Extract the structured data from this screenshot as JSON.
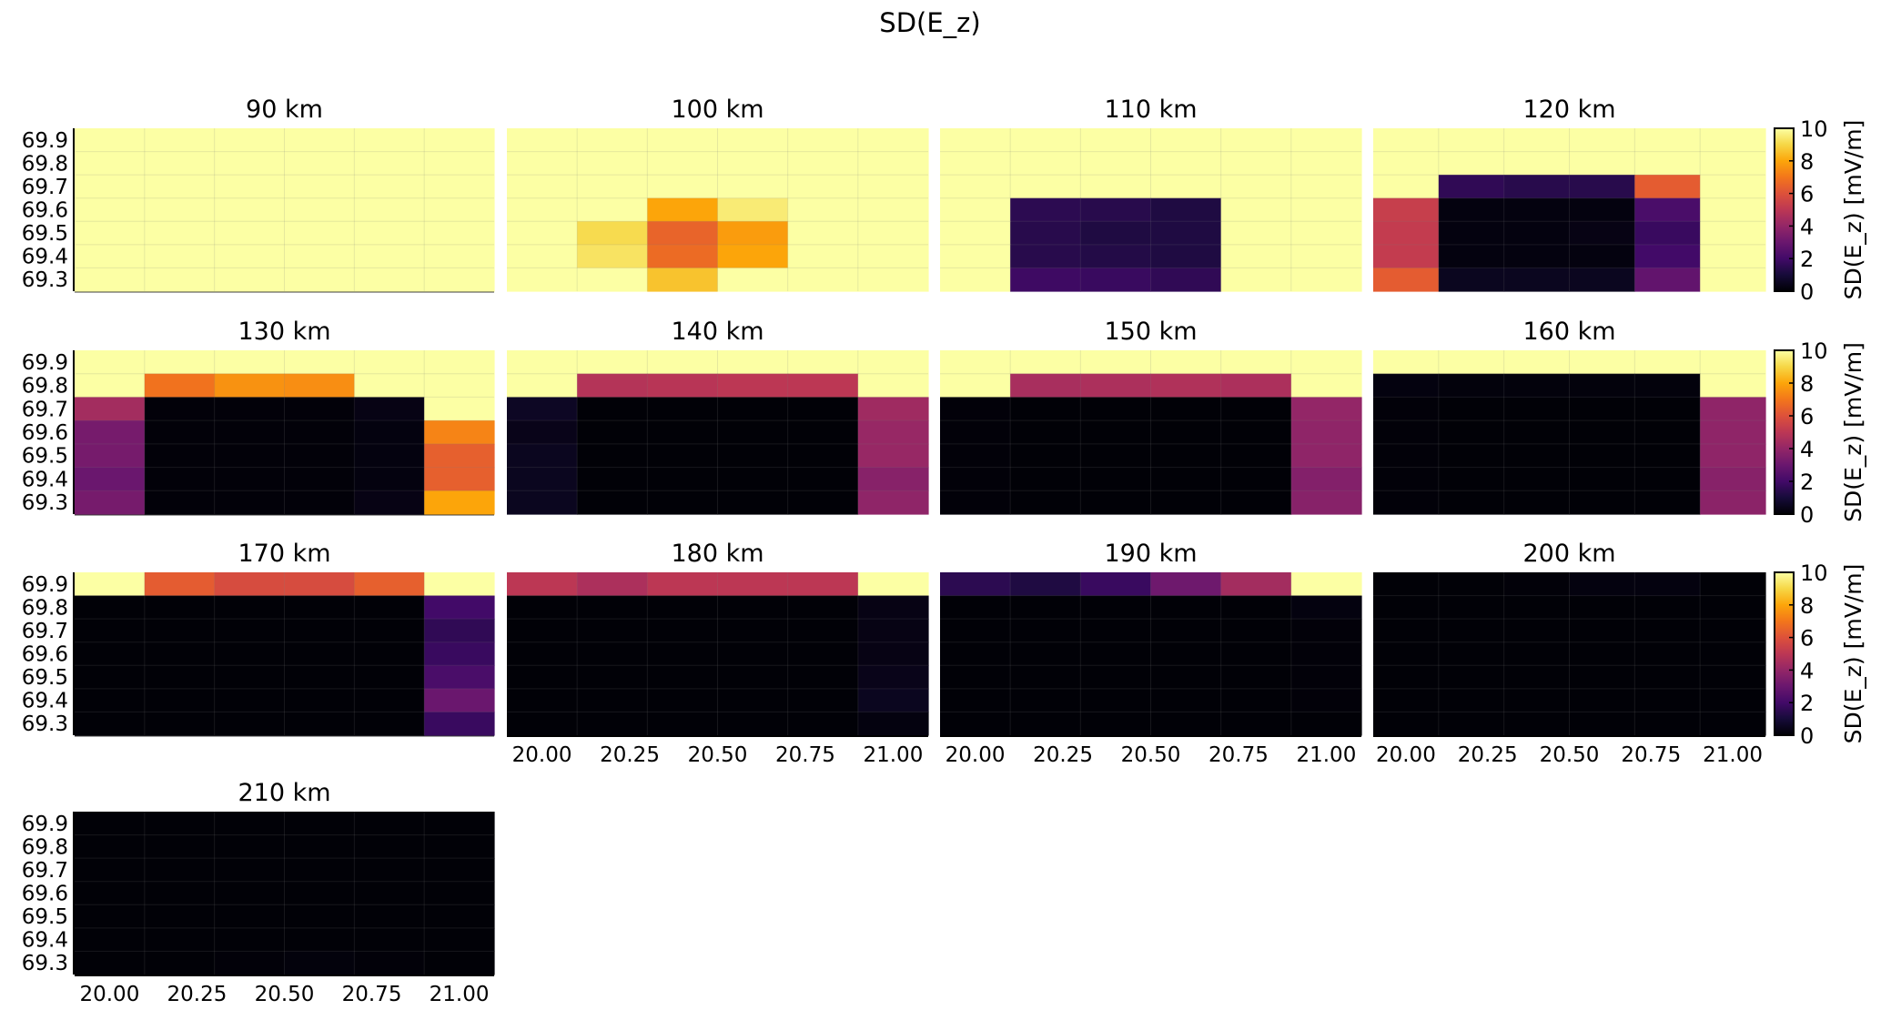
{
  "chart_data": {
    "type": "heatmap",
    "title": "SD(E_z)",
    "xlabel": "",
    "ylabel": "",
    "x": [
      20.0,
      20.2,
      20.4,
      20.6,
      20.8,
      21.0
    ],
    "y": [
      69.9,
      69.8,
      69.7,
      69.6,
      69.5,
      69.4,
      69.3
    ],
    "xticks": [
      "20.00",
      "20.25",
      "20.50",
      "20.75",
      "21.00"
    ],
    "xtick_values": [
      20.0,
      20.25,
      20.5,
      20.75,
      21.0
    ],
    "yticks": [
      "69.9",
      "69.8",
      "69.7",
      "69.6",
      "69.5",
      "69.4",
      "69.3"
    ],
    "xlim": [
      19.9,
      21.1
    ],
    "ylim": [
      69.25,
      69.95
    ],
    "colormap": "inferno",
    "clim": [
      0,
      10
    ],
    "colorbar": {
      "label": "SD(E_z) [mV/m]",
      "ticks": [
        "0",
        "2",
        "4",
        "6",
        "8",
        "10"
      ],
      "tick_values": [
        0,
        2,
        4,
        6,
        8,
        10
      ],
      "placement": "right of each panel row"
    },
    "grid": true,
    "panels": [
      {
        "title": "90 km",
        "values": [
          [
            10,
            10,
            10,
            10,
            10,
            10
          ],
          [
            10,
            10,
            10,
            10,
            10,
            10
          ],
          [
            10,
            10,
            10,
            10,
            10,
            10
          ],
          [
            10,
            10,
            10,
            10,
            10,
            10
          ],
          [
            10,
            10,
            10,
            10,
            10,
            10
          ],
          [
            10,
            10,
            10,
            10,
            10,
            10
          ],
          [
            10,
            10,
            10,
            10,
            10,
            10
          ]
        ]
      },
      {
        "title": "100 km",
        "values": [
          [
            10,
            10,
            10,
            10,
            10,
            10
          ],
          [
            10,
            10,
            10,
            10,
            10,
            10
          ],
          [
            10,
            10,
            10,
            10,
            10,
            10
          ],
          [
            10,
            10,
            8.0,
            9.5,
            10,
            10
          ],
          [
            10,
            9.1,
            6.5,
            7.8,
            10,
            10
          ],
          [
            10,
            9.3,
            6.7,
            8.0,
            10,
            10
          ],
          [
            10,
            10,
            8.6,
            10,
            10,
            10
          ]
        ]
      },
      {
        "title": "110 km",
        "values": [
          [
            10,
            10,
            10,
            10,
            10,
            10
          ],
          [
            10,
            10,
            10,
            10,
            10,
            10
          ],
          [
            10,
            10,
            10,
            10,
            10,
            10
          ],
          [
            10,
            1.5,
            1.4,
            1.2,
            10,
            10
          ],
          [
            10,
            1.4,
            1.2,
            1.2,
            10,
            10
          ],
          [
            10,
            1.4,
            1.3,
            1.2,
            10,
            10
          ],
          [
            10,
            1.9,
            1.8,
            1.6,
            10,
            10
          ]
        ]
      },
      {
        "title": "120 km",
        "values": [
          [
            10,
            10,
            10,
            10,
            10,
            10
          ],
          [
            10,
            10,
            10,
            10,
            10,
            10
          ],
          [
            10,
            1.6,
            1.4,
            1.4,
            6.3,
            10
          ],
          [
            5.3,
            0.2,
            0.2,
            0.2,
            2.2,
            10
          ],
          [
            5.2,
            0.2,
            0.2,
            0.3,
            1.8,
            10
          ],
          [
            5.2,
            0.2,
            0.2,
            0.2,
            2.0,
            10
          ],
          [
            6.3,
            0.5,
            0.5,
            0.5,
            2.8,
            10
          ]
        ]
      },
      {
        "title": "130 km",
        "values": [
          [
            10,
            10,
            10,
            10,
            10,
            10
          ],
          [
            10,
            6.9,
            7.6,
            7.5,
            10,
            10
          ],
          [
            4.4,
            0.1,
            0.1,
            0.1,
            0.3,
            10
          ],
          [
            3.3,
            0.1,
            0.1,
            0.1,
            0.2,
            7.3
          ],
          [
            3.3,
            0.1,
            0.1,
            0.1,
            0.2,
            6.4
          ],
          [
            3.0,
            0.1,
            0.1,
            0.1,
            0.2,
            6.4
          ],
          [
            3.3,
            0.1,
            0.1,
            0.1,
            0.3,
            8.0
          ]
        ]
      },
      {
        "title": "140 km",
        "values": [
          [
            10,
            10,
            10,
            10,
            10,
            10
          ],
          [
            10,
            4.8,
            4.9,
            5.0,
            5.0,
            10
          ],
          [
            0.6,
            0.05,
            0.05,
            0.05,
            0.05,
            4.3
          ],
          [
            0.4,
            0.05,
            0.05,
            0.05,
            0.05,
            4.1
          ],
          [
            0.5,
            0.05,
            0.05,
            0.05,
            0.05,
            4.1
          ],
          [
            0.5,
            0.05,
            0.05,
            0.05,
            0.05,
            3.7
          ],
          [
            0.5,
            0.05,
            0.05,
            0.05,
            0.05,
            3.9
          ]
        ]
      },
      {
        "title": "150 km",
        "values": [
          [
            10,
            10,
            10,
            10,
            10,
            10
          ],
          [
            10,
            4.5,
            4.6,
            4.7,
            4.6,
            10
          ],
          [
            0.1,
            0.05,
            0.05,
            0.05,
            0.05,
            4.0
          ],
          [
            0.1,
            0.05,
            0.05,
            0.05,
            0.05,
            3.9
          ],
          [
            0.1,
            0.05,
            0.05,
            0.05,
            0.05,
            3.9
          ],
          [
            0.1,
            0.05,
            0.05,
            0.05,
            0.05,
            3.6
          ],
          [
            0.1,
            0.05,
            0.05,
            0.05,
            0.05,
            3.7
          ]
        ]
      },
      {
        "title": "160 km",
        "values": [
          [
            10,
            10,
            10,
            10,
            10,
            10
          ],
          [
            0.2,
            0.15,
            0.15,
            0.15,
            0.15,
            10
          ],
          [
            0.1,
            0.05,
            0.05,
            0.05,
            0.05,
            3.9
          ],
          [
            0.1,
            0.05,
            0.05,
            0.05,
            0.05,
            3.9
          ],
          [
            0.1,
            0.05,
            0.05,
            0.05,
            0.05,
            3.9
          ],
          [
            0.1,
            0.05,
            0.05,
            0.05,
            0.05,
            3.7
          ],
          [
            0.1,
            0.05,
            0.05,
            0.05,
            0.05,
            3.8
          ]
        ]
      },
      {
        "title": "170 km",
        "values": [
          [
            10,
            6.3,
            5.8,
            5.8,
            6.4,
            10
          ],
          [
            0.05,
            0.05,
            0.05,
            0.05,
            0.05,
            2.0
          ],
          [
            0.05,
            0.05,
            0.05,
            0.05,
            0.05,
            1.6
          ],
          [
            0.05,
            0.05,
            0.05,
            0.05,
            0.05,
            1.8
          ],
          [
            0.05,
            0.05,
            0.05,
            0.05,
            0.05,
            2.2
          ],
          [
            0.05,
            0.05,
            0.05,
            0.05,
            0.05,
            3.0
          ],
          [
            0.05,
            0.05,
            0.05,
            0.05,
            0.05,
            1.8
          ]
        ]
      },
      {
        "title": "180 km",
        "values": [
          [
            5.0,
            4.6,
            5.0,
            5.0,
            5.0,
            10
          ],
          [
            0.05,
            0.05,
            0.05,
            0.05,
            0.05,
            0.3
          ],
          [
            0.05,
            0.05,
            0.05,
            0.05,
            0.05,
            0.3
          ],
          [
            0.05,
            0.05,
            0.05,
            0.05,
            0.05,
            0.3
          ],
          [
            0.05,
            0.05,
            0.05,
            0.05,
            0.05,
            0.4
          ],
          [
            0.05,
            0.05,
            0.05,
            0.05,
            0.05,
            0.5
          ],
          [
            0.05,
            0.05,
            0.05,
            0.05,
            0.05,
            0.2
          ]
        ]
      },
      {
        "title": "190 km",
        "values": [
          [
            1.5,
            1.2,
            1.8,
            3.1,
            4.4,
            10
          ],
          [
            0.05,
            0.05,
            0.05,
            0.05,
            0.05,
            0.2
          ],
          [
            0.05,
            0.05,
            0.05,
            0.05,
            0.05,
            0.1
          ],
          [
            0.05,
            0.05,
            0.05,
            0.05,
            0.05,
            0.1
          ],
          [
            0.05,
            0.05,
            0.05,
            0.05,
            0.05,
            0.1
          ],
          [
            0.05,
            0.05,
            0.05,
            0.05,
            0.05,
            0.1
          ],
          [
            0.05,
            0.05,
            0.05,
            0.05,
            0.05,
            0.05
          ]
        ]
      },
      {
        "title": "200 km",
        "values": [
          [
            0.05,
            0.05,
            0.1,
            0.2,
            0.2,
            0.05
          ],
          [
            0.05,
            0.05,
            0.05,
            0.05,
            0.05,
            0.05
          ],
          [
            0.05,
            0.05,
            0.05,
            0.05,
            0.05,
            0.05
          ],
          [
            0.05,
            0.05,
            0.05,
            0.05,
            0.05,
            0.05
          ],
          [
            0.05,
            0.05,
            0.05,
            0.05,
            0.05,
            0.05
          ],
          [
            0.05,
            0.05,
            0.05,
            0.05,
            0.05,
            0.05
          ],
          [
            0.05,
            0.05,
            0.05,
            0.05,
            0.05,
            0.05
          ]
        ]
      },
      {
        "title": "210 km",
        "values": [
          [
            0.05,
            0.05,
            0.05,
            0.05,
            0.05,
            0.05
          ],
          [
            0.05,
            0.05,
            0.05,
            0.05,
            0.05,
            0.05
          ],
          [
            0.05,
            0.05,
            0.05,
            0.05,
            0.05,
            0.05
          ],
          [
            0.05,
            0.05,
            0.05,
            0.05,
            0.05,
            0.05
          ],
          [
            0.05,
            0.05,
            0.05,
            0.05,
            0.05,
            0.05
          ],
          [
            0.05,
            0.05,
            0.05,
            0.05,
            0.05,
            0.05
          ],
          [
            0.05,
            0.05,
            0.1,
            0.15,
            0.1,
            0.05
          ]
        ]
      }
    ]
  }
}
